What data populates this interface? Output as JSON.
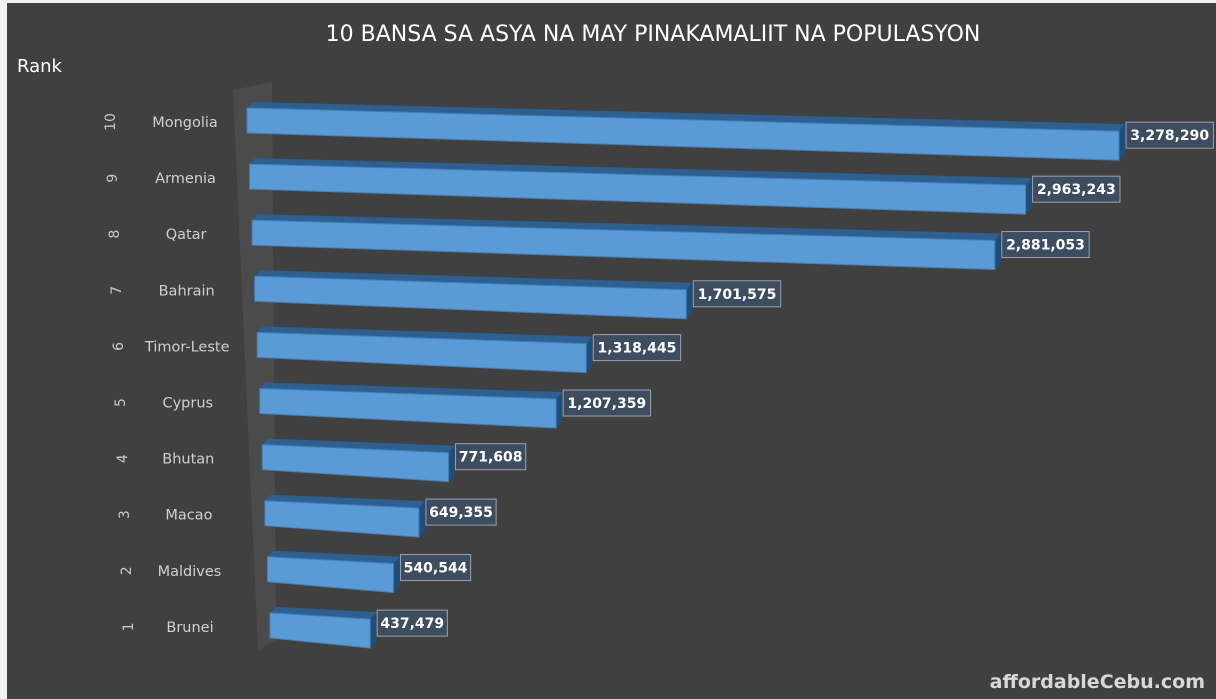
{
  "chart_data": {
    "type": "bar",
    "orientation": "horizontal",
    "style": "3d",
    "title": "10 BANSA SA ASYA NA MAY PINAKAMALIIT NA POPULASYON",
    "ylabel": "Rank",
    "categories": [
      "Mongolia",
      "Armenia",
      "Qatar",
      "Bahrain",
      "Timor-Leste",
      "Cyprus",
      "Bhutan",
      "Macao",
      "Maldives",
      "Brunei"
    ],
    "ranks": [
      "10",
      "9",
      "8",
      "7",
      "6",
      "5",
      "4",
      "3",
      "2",
      "1"
    ],
    "values": [
      3278290,
      2963243,
      2881053,
      1701575,
      1318445,
      1207359,
      771608,
      649355,
      540544,
      437479
    ],
    "data_labels": [
      "3,278,290",
      "2,963,243",
      "2,881,053",
      "1,701,575",
      "1,318,445",
      "1,207,359",
      "771,608",
      "649,355",
      "540,544",
      "437,479"
    ],
    "grid": false,
    "legend": "none",
    "colors": {
      "bar": "#5b9bd5",
      "bar_dark": "#2e5f8f",
      "background": "#404040",
      "label_box": "#3d4d5f"
    }
  },
  "watermark": "affordableCebu.com"
}
